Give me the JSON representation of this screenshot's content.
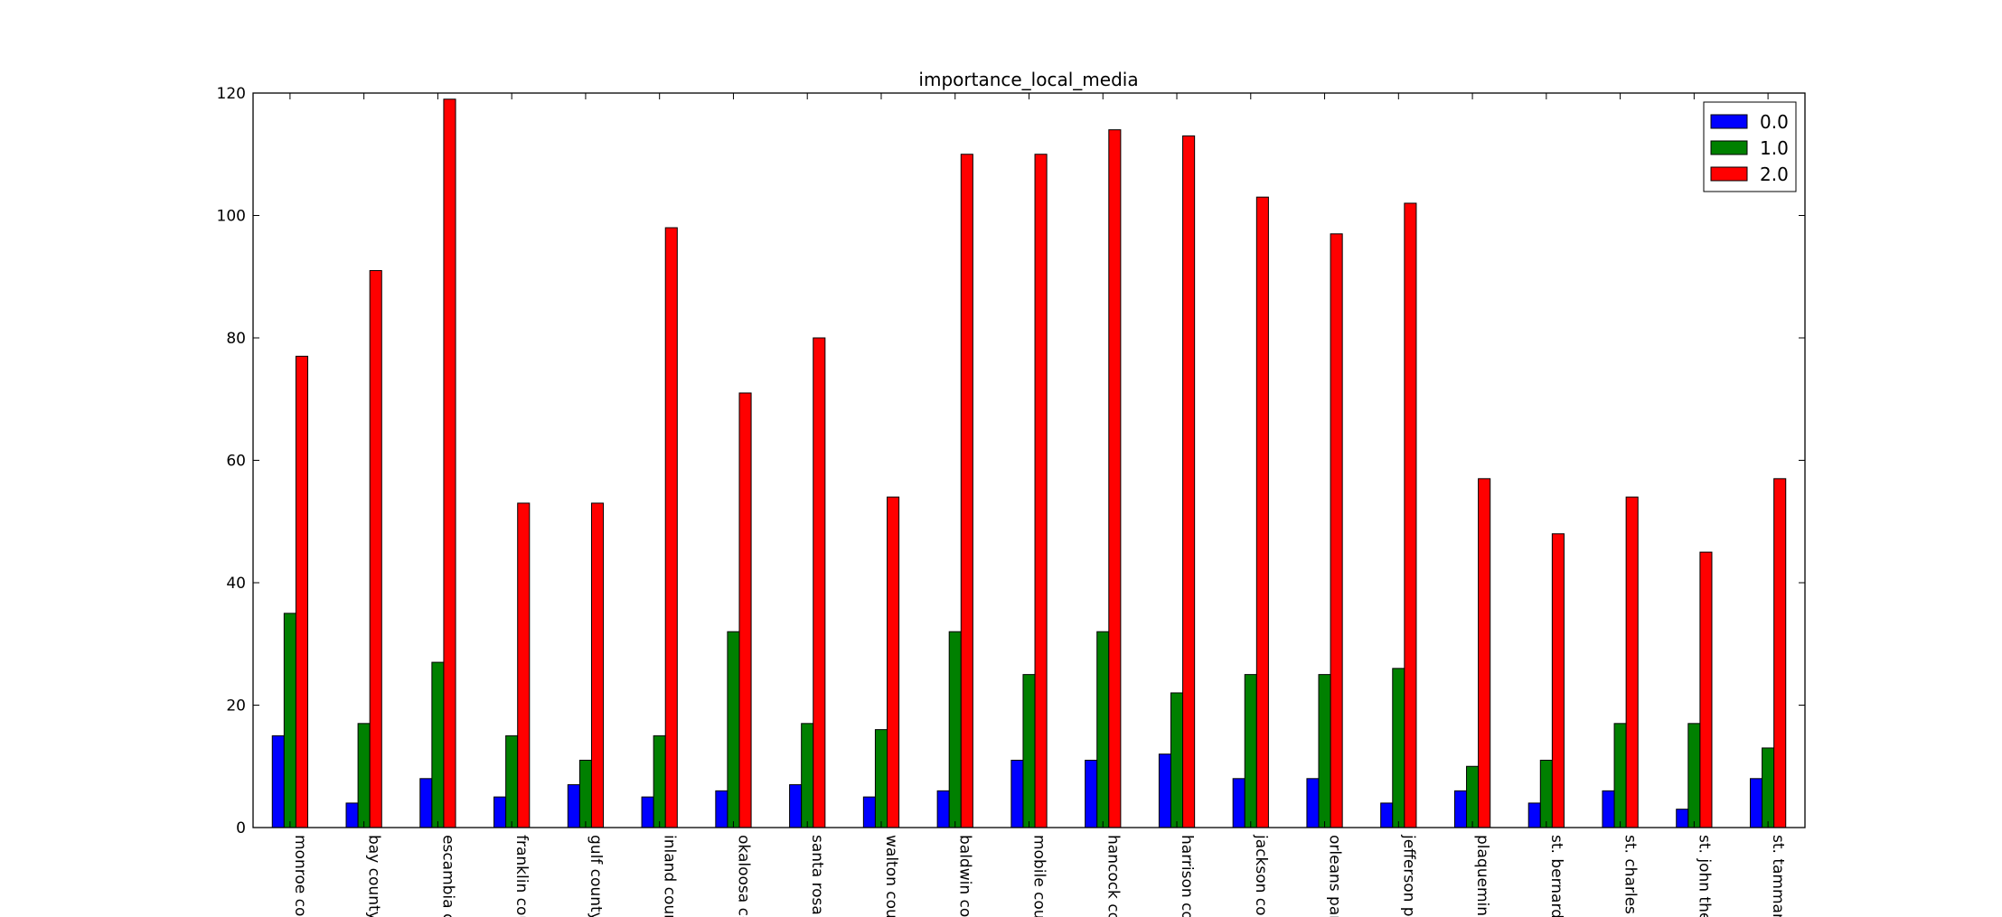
{
  "chart_data": {
    "type": "bar",
    "title": "importance_local_media",
    "xlabel": "",
    "ylabel": "",
    "ylim": [
      0,
      120
    ],
    "yticks": [
      "0",
      "20",
      "40",
      "60",
      "80",
      "100",
      "120"
    ],
    "categories": [
      "monroe cou",
      "bay county",
      "escambia c",
      "franklin cou",
      "gulf county",
      "inland coun",
      "okaloosa co",
      "santa rosa c",
      "walton coun",
      "baldwin cou",
      "mobile coun",
      "hancock co",
      "harrison co",
      "jackson cou",
      "orleans par",
      "jefferson pa",
      "plaquemine",
      "st. bernard",
      "st. charles p",
      "st. john the",
      "st. tamman"
    ],
    "series": [
      {
        "name": "0.0",
        "color": "#0000ff",
        "values": [
          15,
          4,
          8,
          5,
          7,
          5,
          6,
          7,
          5,
          6,
          11,
          11,
          12,
          8,
          8,
          4,
          6,
          4,
          6,
          3,
          8
        ]
      },
      {
        "name": "1.0",
        "color": "#008000",
        "values": [
          35,
          17,
          27,
          15,
          11,
          15,
          32,
          17,
          16,
          32,
          25,
          32,
          22,
          25,
          25,
          26,
          10,
          11,
          17,
          17,
          13
        ]
      },
      {
        "name": "2.0",
        "color": "#ff0000",
        "values": [
          77,
          91,
          119,
          53,
          53,
          98,
          71,
          80,
          54,
          110,
          110,
          114,
          113,
          103,
          97,
          102,
          57,
          48,
          54,
          45,
          57
        ]
      }
    ],
    "legend": {
      "placement": "top-right"
    },
    "grid": false
  }
}
